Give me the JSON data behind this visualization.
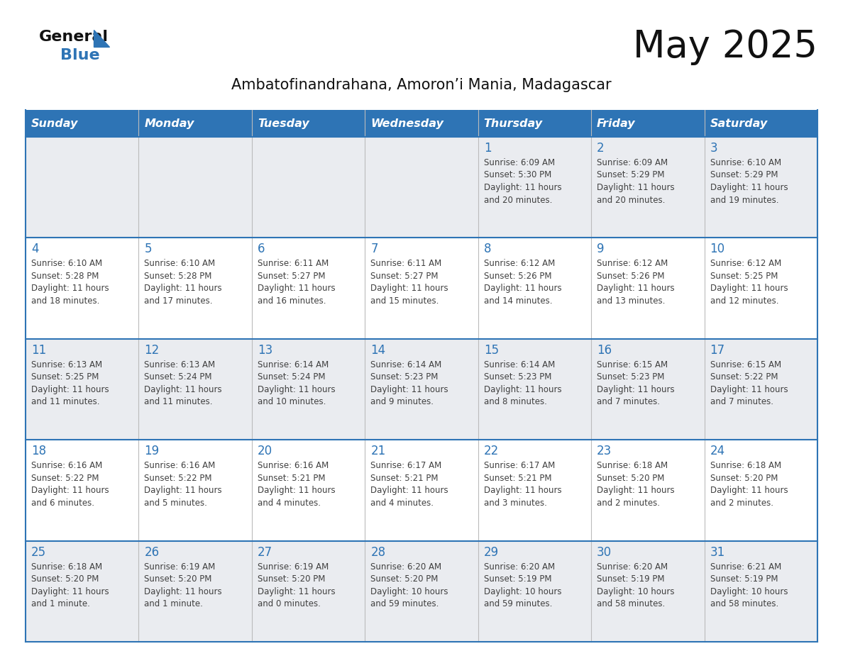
{
  "title": "May 2025",
  "subtitle": "Ambatofinandrahana, Amoron’i Mania, Madagascar",
  "days_of_week": [
    "Sunday",
    "Monday",
    "Tuesday",
    "Wednesday",
    "Thursday",
    "Friday",
    "Saturday"
  ],
  "header_bg": "#2E74B5",
  "header_text": "#FFFFFF",
  "row_bg_light": "#EAECF0",
  "row_bg_white": "#FFFFFF",
  "day_number_color": "#2E74B5",
  "cell_text_color": "#404040",
  "border_color": "#2E74B5",
  "sep_color": "#AAAAAA",
  "logo_general_color": "#1a1a1a",
  "logo_blue_color": "#2E74B5",
  "logo_triangle_color": "#2E74B5",
  "calendar_data": [
    [
      null,
      null,
      null,
      null,
      {
        "day": 1,
        "sunrise": "6:09 AM",
        "sunset": "5:30 PM",
        "daylight_line1": "Daylight: 11 hours",
        "daylight_line2": "and 20 minutes."
      },
      {
        "day": 2,
        "sunrise": "6:09 AM",
        "sunset": "5:29 PM",
        "daylight_line1": "Daylight: 11 hours",
        "daylight_line2": "and 20 minutes."
      },
      {
        "day": 3,
        "sunrise": "6:10 AM",
        "sunset": "5:29 PM",
        "daylight_line1": "Daylight: 11 hours",
        "daylight_line2": "and 19 minutes."
      }
    ],
    [
      {
        "day": 4,
        "sunrise": "6:10 AM",
        "sunset": "5:28 PM",
        "daylight_line1": "Daylight: 11 hours",
        "daylight_line2": "and 18 minutes."
      },
      {
        "day": 5,
        "sunrise": "6:10 AM",
        "sunset": "5:28 PM",
        "daylight_line1": "Daylight: 11 hours",
        "daylight_line2": "and 17 minutes."
      },
      {
        "day": 6,
        "sunrise": "6:11 AM",
        "sunset": "5:27 PM",
        "daylight_line1": "Daylight: 11 hours",
        "daylight_line2": "and 16 minutes."
      },
      {
        "day": 7,
        "sunrise": "6:11 AM",
        "sunset": "5:27 PM",
        "daylight_line1": "Daylight: 11 hours",
        "daylight_line2": "and 15 minutes."
      },
      {
        "day": 8,
        "sunrise": "6:12 AM",
        "sunset": "5:26 PM",
        "daylight_line1": "Daylight: 11 hours",
        "daylight_line2": "and 14 minutes."
      },
      {
        "day": 9,
        "sunrise": "6:12 AM",
        "sunset": "5:26 PM",
        "daylight_line1": "Daylight: 11 hours",
        "daylight_line2": "and 13 minutes."
      },
      {
        "day": 10,
        "sunrise": "6:12 AM",
        "sunset": "5:25 PM",
        "daylight_line1": "Daylight: 11 hours",
        "daylight_line2": "and 12 minutes."
      }
    ],
    [
      {
        "day": 11,
        "sunrise": "6:13 AM",
        "sunset": "5:25 PM",
        "daylight_line1": "Daylight: 11 hours",
        "daylight_line2": "and 11 minutes."
      },
      {
        "day": 12,
        "sunrise": "6:13 AM",
        "sunset": "5:24 PM",
        "daylight_line1": "Daylight: 11 hours",
        "daylight_line2": "and 11 minutes."
      },
      {
        "day": 13,
        "sunrise": "6:14 AM",
        "sunset": "5:24 PM",
        "daylight_line1": "Daylight: 11 hours",
        "daylight_line2": "and 10 minutes."
      },
      {
        "day": 14,
        "sunrise": "6:14 AM",
        "sunset": "5:23 PM",
        "daylight_line1": "Daylight: 11 hours",
        "daylight_line2": "and 9 minutes."
      },
      {
        "day": 15,
        "sunrise": "6:14 AM",
        "sunset": "5:23 PM",
        "daylight_line1": "Daylight: 11 hours",
        "daylight_line2": "and 8 minutes."
      },
      {
        "day": 16,
        "sunrise": "6:15 AM",
        "sunset": "5:23 PM",
        "daylight_line1": "Daylight: 11 hours",
        "daylight_line2": "and 7 minutes."
      },
      {
        "day": 17,
        "sunrise": "6:15 AM",
        "sunset": "5:22 PM",
        "daylight_line1": "Daylight: 11 hours",
        "daylight_line2": "and 7 minutes."
      }
    ],
    [
      {
        "day": 18,
        "sunrise": "6:16 AM",
        "sunset": "5:22 PM",
        "daylight_line1": "Daylight: 11 hours",
        "daylight_line2": "and 6 minutes."
      },
      {
        "day": 19,
        "sunrise": "6:16 AM",
        "sunset": "5:22 PM",
        "daylight_line1": "Daylight: 11 hours",
        "daylight_line2": "and 5 minutes."
      },
      {
        "day": 20,
        "sunrise": "6:16 AM",
        "sunset": "5:21 PM",
        "daylight_line1": "Daylight: 11 hours",
        "daylight_line2": "and 4 minutes."
      },
      {
        "day": 21,
        "sunrise": "6:17 AM",
        "sunset": "5:21 PM",
        "daylight_line1": "Daylight: 11 hours",
        "daylight_line2": "and 4 minutes."
      },
      {
        "day": 22,
        "sunrise": "6:17 AM",
        "sunset": "5:21 PM",
        "daylight_line1": "Daylight: 11 hours",
        "daylight_line2": "and 3 minutes."
      },
      {
        "day": 23,
        "sunrise": "6:18 AM",
        "sunset": "5:20 PM",
        "daylight_line1": "Daylight: 11 hours",
        "daylight_line2": "and 2 minutes."
      },
      {
        "day": 24,
        "sunrise": "6:18 AM",
        "sunset": "5:20 PM",
        "daylight_line1": "Daylight: 11 hours",
        "daylight_line2": "and 2 minutes."
      }
    ],
    [
      {
        "day": 25,
        "sunrise": "6:18 AM",
        "sunset": "5:20 PM",
        "daylight_line1": "Daylight: 11 hours",
        "daylight_line2": "and 1 minute."
      },
      {
        "day": 26,
        "sunrise": "6:19 AM",
        "sunset": "5:20 PM",
        "daylight_line1": "Daylight: 11 hours",
        "daylight_line2": "and 1 minute."
      },
      {
        "day": 27,
        "sunrise": "6:19 AM",
        "sunset": "5:20 PM",
        "daylight_line1": "Daylight: 11 hours",
        "daylight_line2": "and 0 minutes."
      },
      {
        "day": 28,
        "sunrise": "6:20 AM",
        "sunset": "5:20 PM",
        "daylight_line1": "Daylight: 10 hours",
        "daylight_line2": "and 59 minutes."
      },
      {
        "day": 29,
        "sunrise": "6:20 AM",
        "sunset": "5:19 PM",
        "daylight_line1": "Daylight: 10 hours",
        "daylight_line2": "and 59 minutes."
      },
      {
        "day": 30,
        "sunrise": "6:20 AM",
        "sunset": "5:19 PM",
        "daylight_line1": "Daylight: 10 hours",
        "daylight_line2": "and 58 minutes."
      },
      {
        "day": 31,
        "sunrise": "6:21 AM",
        "sunset": "5:19 PM",
        "daylight_line1": "Daylight: 10 hours",
        "daylight_line2": "and 58 minutes."
      }
    ]
  ]
}
